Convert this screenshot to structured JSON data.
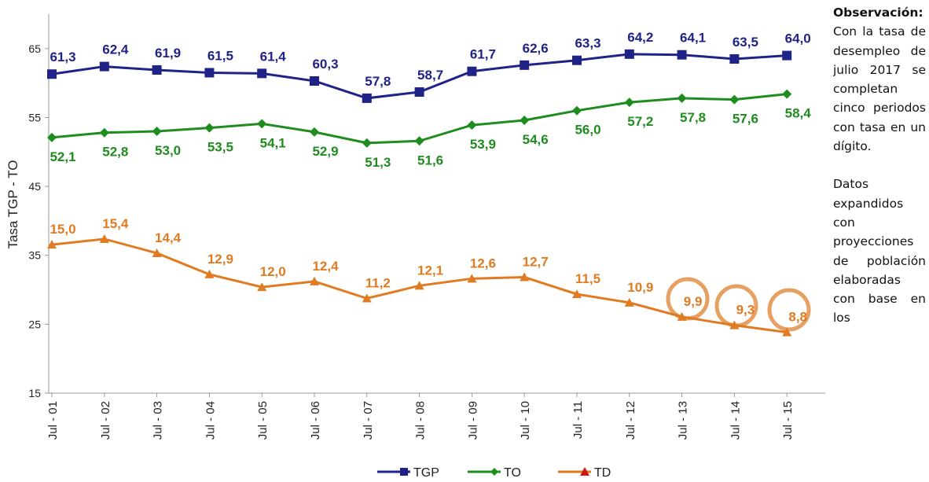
{
  "chart_data": {
    "type": "line",
    "y_label": "Tasa TGP - TO",
    "categories": [
      "Jul - 01",
      "Jul - 02",
      "Jul - 03",
      "Jul - 04",
      "Jul - 05",
      "Jul - 06",
      "Jul - 07",
      "Jul - 08",
      "Jul - 09",
      "Jul - 10",
      "Jul - 11",
      "Jul - 12",
      "Jul - 13",
      "Jul - 14",
      "Jul - 15"
    ],
    "ylim": [
      15,
      70
    ],
    "yticks": [
      15,
      25,
      35,
      45,
      55,
      65
    ],
    "y2lim": [
      4.5,
      31.3
    ],
    "legend": "bottom",
    "series": [
      {
        "name": "TGP",
        "color": "#1f2388",
        "marker": "square",
        "values": [
          61.3,
          62.4,
          61.9,
          61.5,
          61.4,
          60.3,
          57.8,
          58.7,
          61.7,
          62.6,
          63.3,
          64.2,
          64.1,
          63.5,
          64.0
        ],
        "value_labels": [
          "61,3",
          "62,4",
          "61,9",
          "61,5",
          "61,4",
          "60,3",
          "57,8",
          "58,7",
          "61,7",
          "62,6",
          "63,3",
          "64,2",
          "64,1",
          "63,5",
          "64,0"
        ]
      },
      {
        "name": "TO",
        "color": "#1f8c1f",
        "marker": "diamond",
        "values": [
          52.1,
          52.8,
          53.0,
          53.5,
          54.1,
          52.9,
          51.3,
          51.6,
          53.9,
          54.6,
          56.0,
          57.2,
          57.8,
          57.6,
          58.4
        ],
        "value_labels": [
          "52,1",
          "52,8",
          "53,0",
          "53,5",
          "54,1",
          "52,9",
          "51,3",
          "51,6",
          "53,9",
          "54,6",
          "56,0",
          "57,2",
          "57,8",
          "57,6",
          "58,4"
        ]
      },
      {
        "name": "TD",
        "color": "#e07b22",
        "marker": "triangle",
        "axis": "y2",
        "values": [
          15.0,
          15.4,
          14.4,
          12.9,
          12.0,
          12.4,
          11.2,
          12.1,
          12.6,
          12.7,
          11.5,
          10.9,
          9.9,
          9.3,
          8.8
        ],
        "value_labels": [
          "15,0",
          "15,4",
          "14,4",
          "12,9",
          "12,0",
          "12,4",
          "11,2",
          "12,1",
          "12,6",
          "12,7",
          "11,5",
          "10,9",
          "9,9",
          "9,3",
          "8,8"
        ]
      }
    ]
  },
  "note": {
    "title": "Observación:",
    "paragraphs": [
      "Con la tasa de desempleo de julio 2017 se completan cinco periodos con tasa en un dígito.",
      "Datos expandidos con proyecciones de población elaboradas con base en los"
    ]
  }
}
